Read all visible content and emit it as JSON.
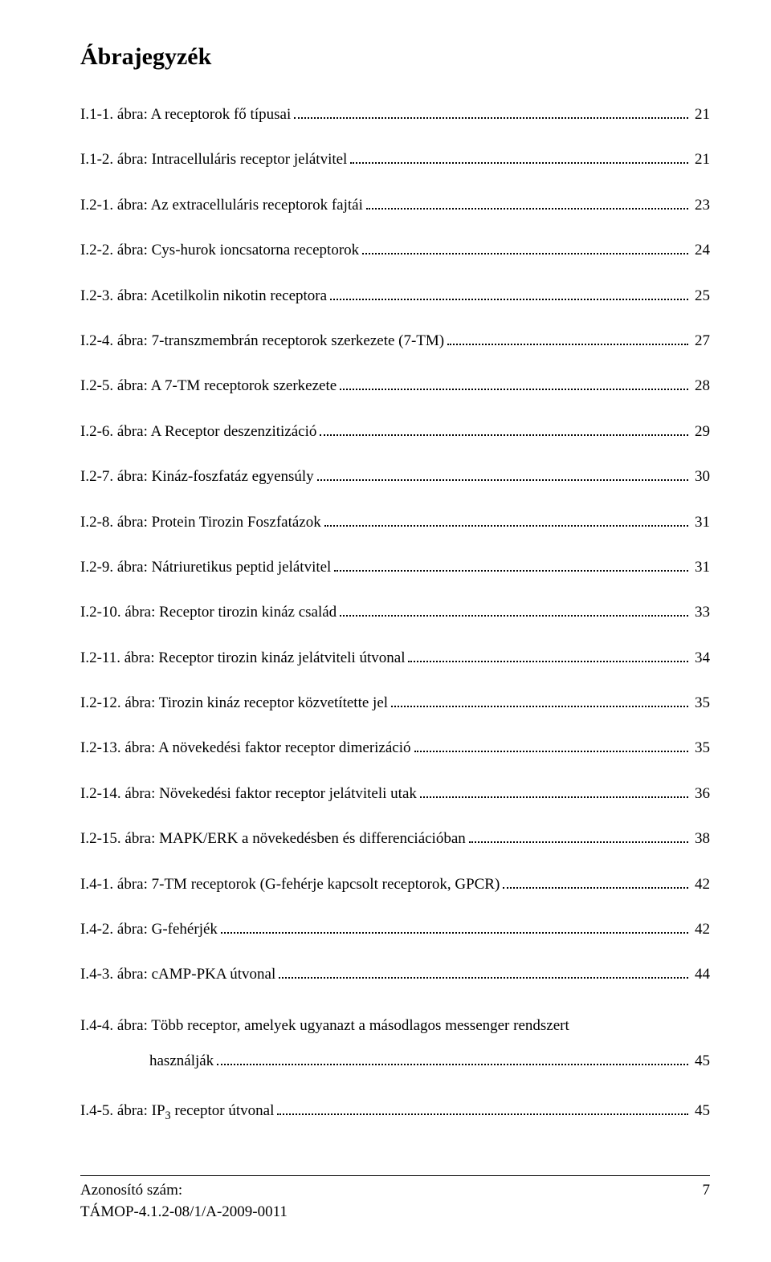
{
  "title": "Ábrajegyzék",
  "entries": [
    {
      "label": "I.1-1. ábra: A receptorok fő típusai",
      "page": "21"
    },
    {
      "label": "I.1-2. ábra: Intracelluláris receptor jelátvitel",
      "page": "21"
    },
    {
      "label": "I.2-1. ábra: Az extracelluláris receptorok fajtái",
      "page": "23"
    },
    {
      "label": "I.2-2. ábra: Cys-hurok ioncsatorna receptorok",
      "page": "24"
    },
    {
      "label": "I.2-3. ábra: Acetilkolin nikotin receptora",
      "page": "25"
    },
    {
      "label": "I.2-4. ábra: 7-transzmembrán receptorok szerkezete (7-TM)",
      "page": "27"
    },
    {
      "label": "I.2-5. ábra: A 7-TM receptorok szerkezete",
      "page": "28"
    },
    {
      "label": "I.2-6. ábra: A Receptor deszenzitizáció",
      "page": "29"
    },
    {
      "label": "I.2-7. ábra: Kináz-foszfatáz egyensúly",
      "page": "30"
    },
    {
      "label": "I.2-8. ábra: Protein Tirozin Foszfatázok",
      "page": "31"
    },
    {
      "label": "I.2-9. ábra: Nátriuretikus peptid jelátvitel",
      "page": "31"
    },
    {
      "label": "I.2-10. ábra: Receptor tirozin kináz család",
      "page": "33"
    },
    {
      "label": "I.2-11. ábra: Receptor tirozin kináz jelátviteli útvonal",
      "page": "34"
    },
    {
      "label": "I.2-12. ábra: Tirozin kináz receptor közvetítette jel",
      "page": "35"
    },
    {
      "label": "I.2-13. ábra: A növekedési faktor receptor dimerizáció",
      "page": "35"
    },
    {
      "label": "I.2-14. ábra: Növekedési faktor receptor jelátviteli utak",
      "page": "36"
    },
    {
      "label": "I.2-15. ábra: MAPK/ERK a növekedésben és differenciációban",
      "page": "38"
    },
    {
      "label": "I.4-1. ábra: 7-TM receptorok (G-fehérje kapcsolt receptorok, GPCR)",
      "page": "42"
    },
    {
      "label": "I.4-2. ábra: G-fehérjék",
      "page": "42"
    },
    {
      "label": "I.4-3. ábra: cAMP-PKA útvonal",
      "page": "44"
    }
  ],
  "wrapped_entry": {
    "line1": "I.4-4. ábra: Több receptor, amelyek ugyanazt a másodlagos messenger rendszert",
    "line2_label": "használják",
    "page": "45"
  },
  "last_entry": {
    "prefix": "I.4-5. ábra: IP",
    "sub": "3",
    "suffix": " receptor útvonal",
    "page": "45"
  },
  "footer": {
    "id_label": "Azonosító szám:",
    "code": "TÁMOP-4.1.2-08/1/A-2009-0011",
    "page_num": "7"
  }
}
